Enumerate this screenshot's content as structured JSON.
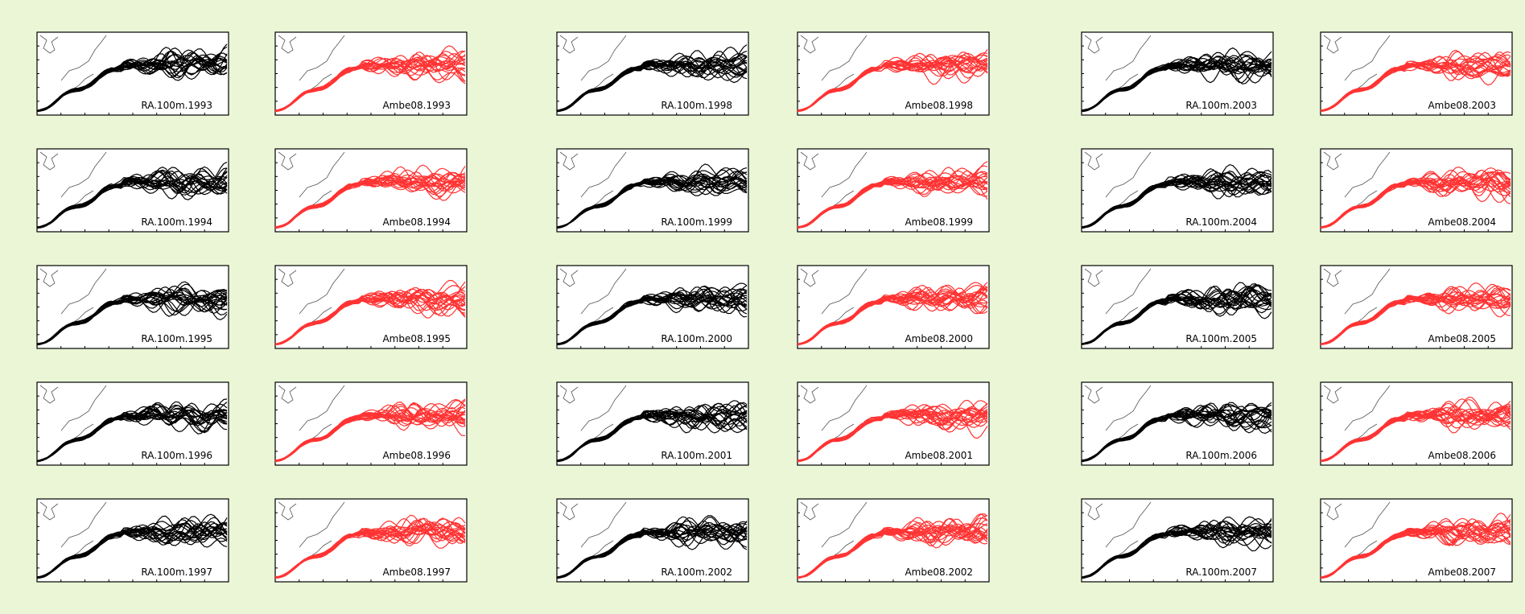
{
  "panels": [
    {
      "label": "RA.100m.1993",
      "color": "#000000"
    },
    {
      "label": "Ambe08.1993",
      "color": "#ff3333"
    },
    {
      "label": "RA.100m.1998",
      "color": "#000000"
    },
    {
      "label": "Ambe08.1998",
      "color": "#ff3333"
    },
    {
      "label": "RA.100m.2003",
      "color": "#000000"
    },
    {
      "label": "Ambe08.2003",
      "color": "#ff3333"
    },
    {
      "label": "RA.100m.1994",
      "color": "#000000"
    },
    {
      "label": "Ambe08.1994",
      "color": "#ff3333"
    },
    {
      "label": "RA.100m.1999",
      "color": "#000000"
    },
    {
      "label": "Ambe08.1999",
      "color": "#ff3333"
    },
    {
      "label": "RA.100m.2004",
      "color": "#000000"
    },
    {
      "label": "Ambe08.2004",
      "color": "#ff3333"
    },
    {
      "label": "RA.100m.1995",
      "color": "#000000"
    },
    {
      "label": "Ambe08.1995",
      "color": "#ff3333"
    },
    {
      "label": "RA.100m.2000",
      "color": "#000000"
    },
    {
      "label": "Ambe08.2000",
      "color": "#ff3333"
    },
    {
      "label": "RA.100m.2005",
      "color": "#000000"
    },
    {
      "label": "Ambe08.2005",
      "color": "#ff3333"
    },
    {
      "label": "RA.100m.1996",
      "color": "#000000"
    },
    {
      "label": "Ambe08.1996",
      "color": "#ff3333"
    },
    {
      "label": "RA.100m.2001",
      "color": "#000000"
    },
    {
      "label": "Ambe08.2001",
      "color": "#ff3333"
    },
    {
      "label": "RA.100m.2006",
      "color": "#000000"
    },
    {
      "label": "Ambe08.2006",
      "color": "#ff3333"
    },
    {
      "label": "RA.100m.1997",
      "color": "#000000"
    },
    {
      "label": "Ambe08.1997",
      "color": "#ff3333"
    },
    {
      "label": "RA.100m.2002",
      "color": "#000000"
    },
    {
      "label": "Ambe08.2002",
      "color": "#ff3333"
    },
    {
      "label": "RA.100m.2007",
      "color": "#000000"
    },
    {
      "label": "Ambe08.2007",
      "color": "#ff3333"
    }
  ]
}
